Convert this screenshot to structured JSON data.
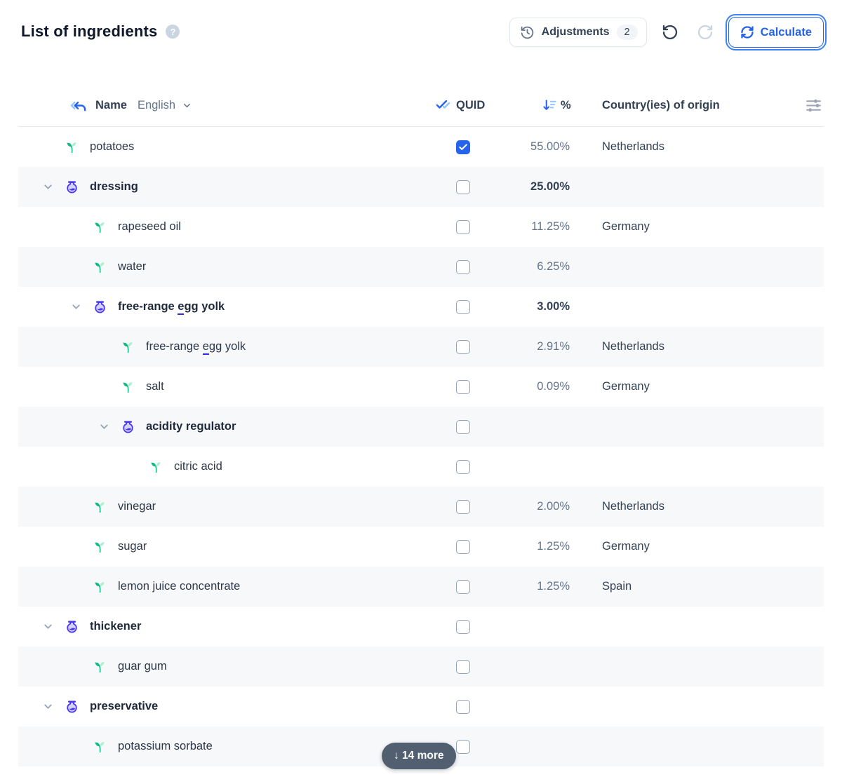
{
  "header": {
    "title": "List of ingredients",
    "adjustments": {
      "label": "Adjustments",
      "badge": "2"
    },
    "calculate": {
      "label": "Calculate"
    }
  },
  "table": {
    "columns": {
      "name_label": "Name",
      "name_language": "English",
      "quid_label": "QUID",
      "percent_label": "%",
      "origin_label": "Country(ies) of origin"
    },
    "rows": [
      {
        "name": "potatoes",
        "type": "ingredient",
        "level": 1,
        "quid": true,
        "percent": "55.00%",
        "origin": "Netherlands"
      },
      {
        "name": "dressing",
        "type": "compound",
        "level": 1,
        "expanded": true,
        "quid": false,
        "percent": "25.00%",
        "origin": ""
      },
      {
        "name": "rapeseed oil",
        "type": "ingredient",
        "level": 2,
        "quid": false,
        "percent": "11.25%",
        "origin": "Germany"
      },
      {
        "name": "water",
        "type": "ingredient",
        "level": 2,
        "quid": false,
        "percent": "6.25%",
        "origin": ""
      },
      {
        "name": "free-range egg yolk",
        "type": "compound",
        "level": 2,
        "expanded": true,
        "quid": false,
        "percent": "3.00%",
        "origin": "",
        "allergen_word": "egg"
      },
      {
        "name": "free-range egg yolk",
        "type": "ingredient",
        "level": 3,
        "quid": false,
        "percent": "2.91%",
        "origin": "Netherlands",
        "allergen_word": "egg"
      },
      {
        "name": "salt",
        "type": "ingredient",
        "level": 3,
        "quid": false,
        "percent": "0.09%",
        "origin": "Germany"
      },
      {
        "name": "acidity regulator",
        "type": "compound",
        "level": 3,
        "expanded": true,
        "quid": false,
        "percent": "",
        "origin": ""
      },
      {
        "name": "citric acid",
        "type": "ingredient",
        "level": 4,
        "quid": false,
        "percent": "",
        "origin": ""
      },
      {
        "name": "vinegar",
        "type": "ingredient",
        "level": 2,
        "quid": false,
        "percent": "2.00%",
        "origin": "Netherlands"
      },
      {
        "name": "sugar",
        "type": "ingredient",
        "level": 2,
        "quid": false,
        "percent": "1.25%",
        "origin": "Germany"
      },
      {
        "name": "lemon juice concentrate",
        "type": "ingredient",
        "level": 2,
        "quid": false,
        "percent": "1.25%",
        "origin": "Spain"
      },
      {
        "name": "thickener",
        "type": "compound",
        "level": 1,
        "expanded": true,
        "quid": false,
        "percent": "",
        "origin": ""
      },
      {
        "name": "guar gum",
        "type": "ingredient",
        "level": 2,
        "quid": false,
        "percent": "",
        "origin": ""
      },
      {
        "name": "preservative",
        "type": "compound",
        "level": 1,
        "expanded": true,
        "quid": false,
        "percent": "",
        "origin": ""
      },
      {
        "name": "potassium sorbate",
        "type": "ingredient",
        "level": 2,
        "quid": false,
        "percent": "",
        "origin": ""
      }
    ],
    "more_pill": {
      "label": "↓ 14 more"
    }
  },
  "colors": {
    "accent_blue": "#2563eb",
    "flask_indigo": "#4535ef",
    "leaf_green": "#10b981",
    "leaf_light": "#a7f3d0",
    "row_alt_bg": "#f7f8fa",
    "pill_bg": "#495668",
    "text_dark": "#1e293b",
    "text_gray": "#64748b"
  }
}
